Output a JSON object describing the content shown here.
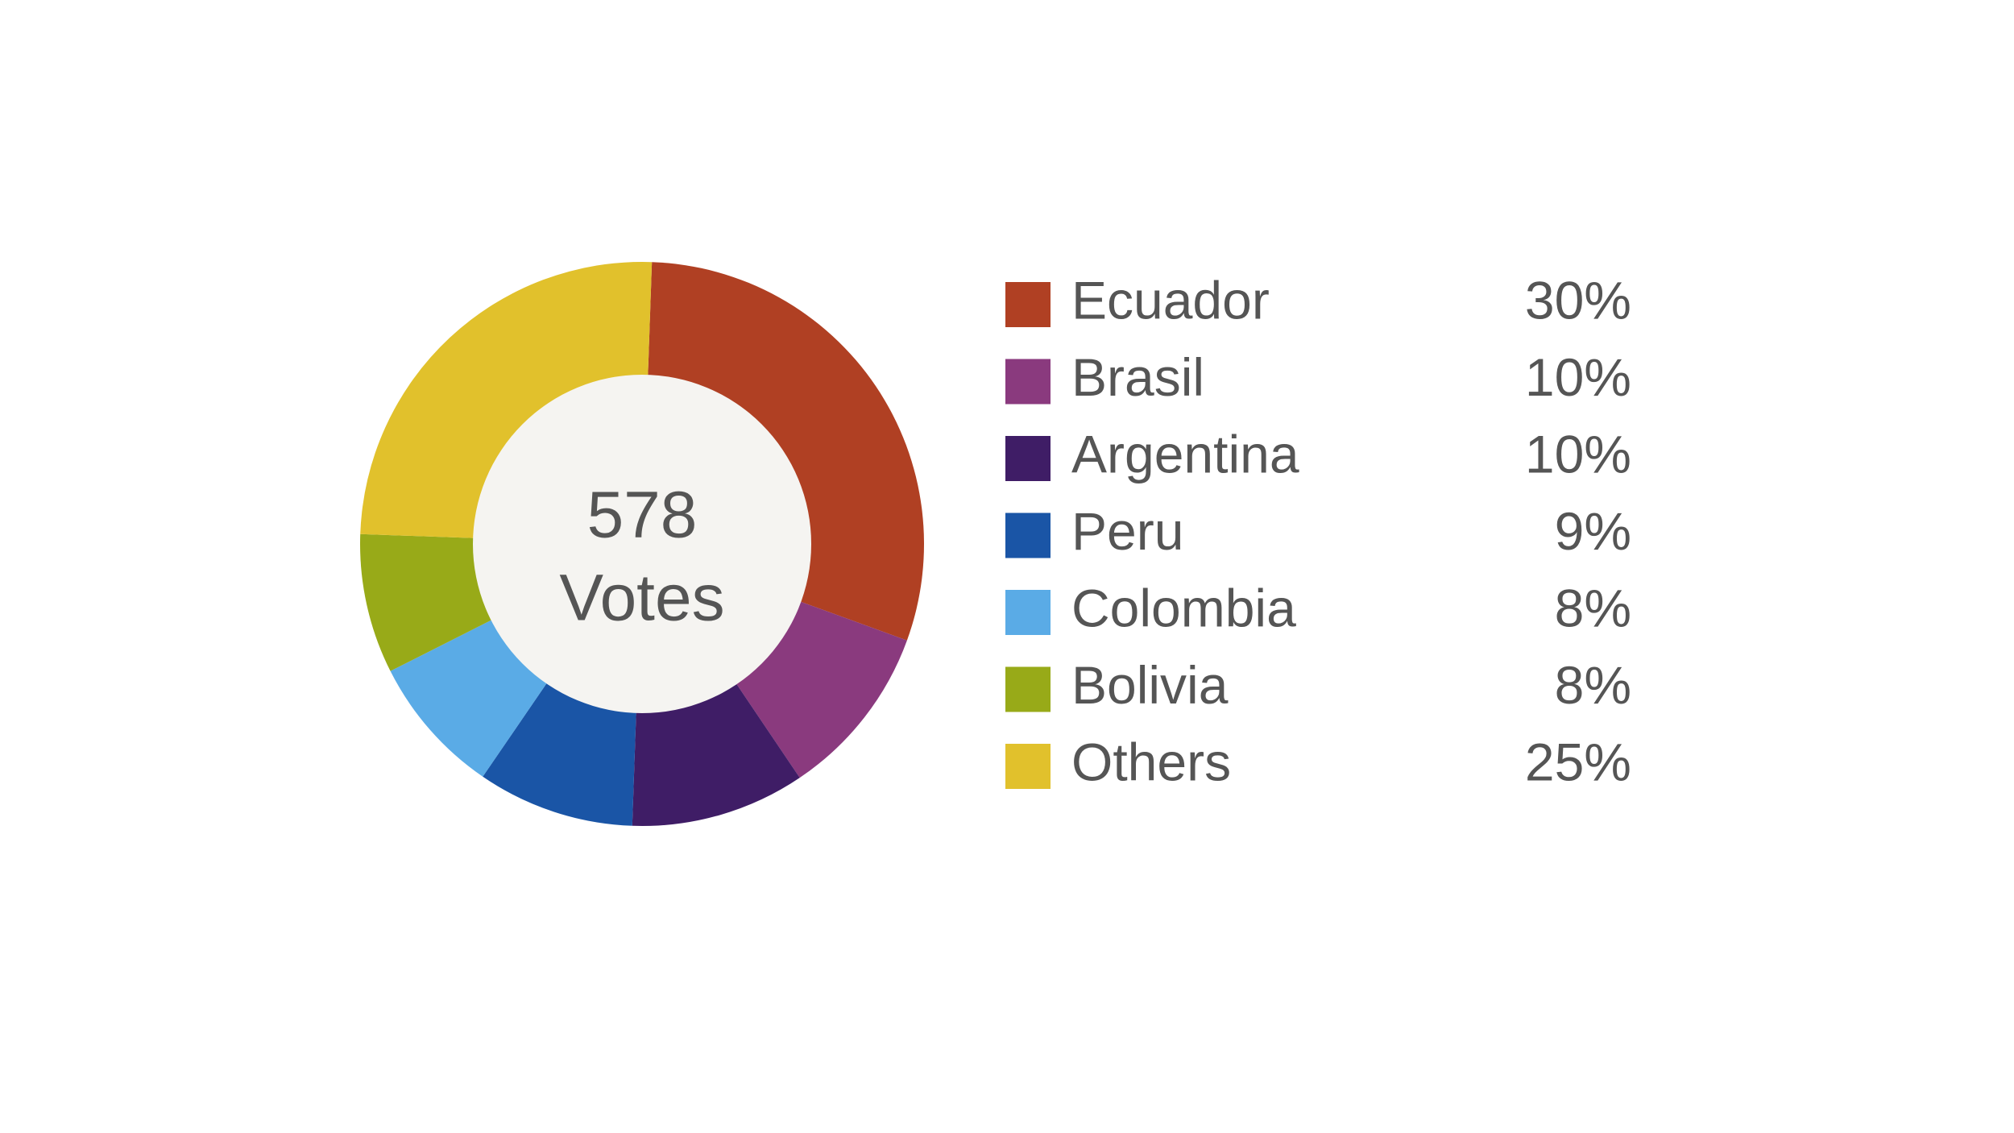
{
  "chart_data": {
    "type": "pie",
    "categories": [
      "Ecuador",
      "Brasil",
      "Argentina",
      "Peru",
      "Colombia",
      "Bolivia",
      "Others"
    ],
    "values": [
      30,
      10,
      10,
      9,
      8,
      8,
      25
    ],
    "value_labels": [
      "30%",
      "10%",
      "10%",
      "9%",
      "8%",
      "8%",
      "25%"
    ],
    "colors": [
      "#b04023",
      "#8a3a7e",
      "#3f1d66",
      "#1a55a6",
      "#5aabe6",
      "#98aa18",
      "#e1c12c"
    ],
    "center_fill": "#f5f4f1",
    "center_label": {
      "value": "578",
      "unit": "Votes"
    },
    "legend_position": "right"
  }
}
